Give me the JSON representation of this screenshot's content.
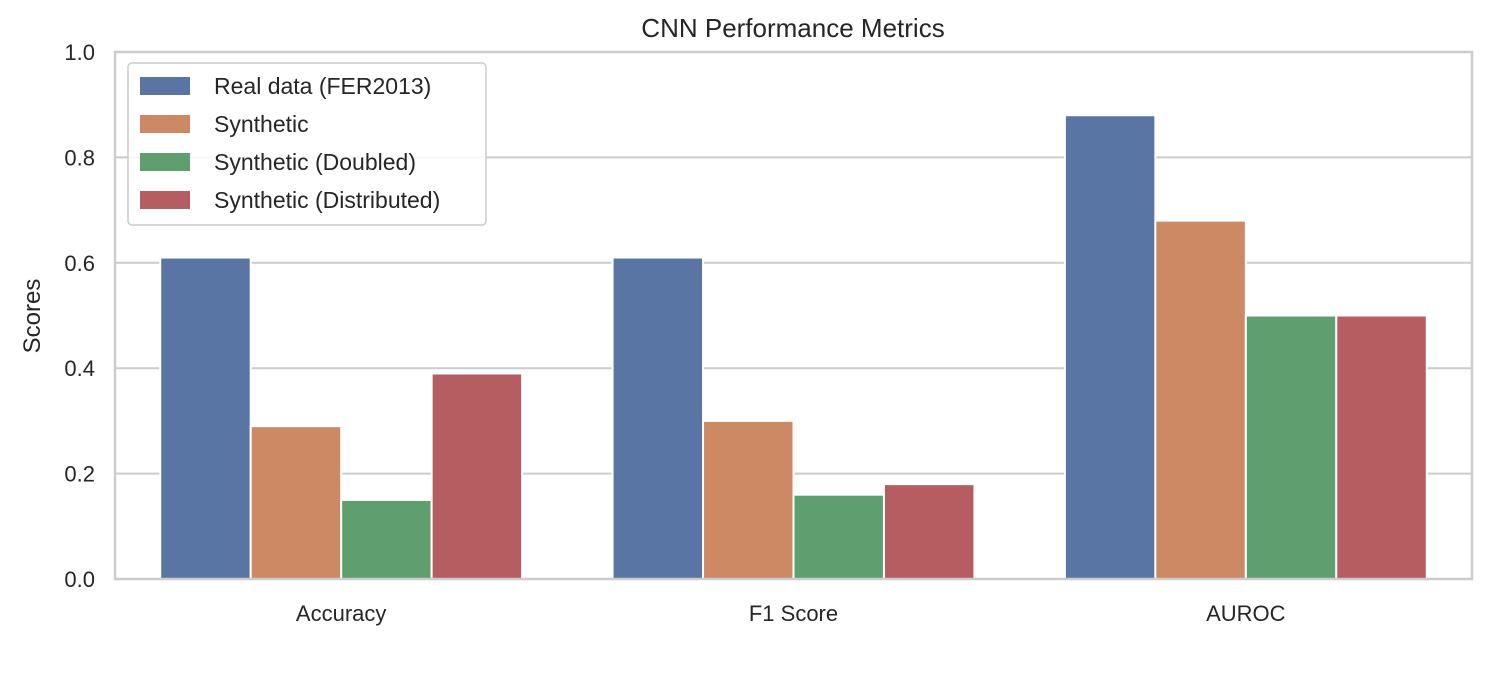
{
  "chart_data": {
    "type": "bar",
    "title": "CNN Performance Metrics",
    "xlabel": "",
    "ylabel": "Scores",
    "ylim": [
      0,
      1.0
    ],
    "yticks": [
      "0.0",
      "0.2",
      "0.4",
      "0.6",
      "0.8",
      "1.0"
    ],
    "grid": true,
    "legend_position": "top-left",
    "categories": [
      "Accuracy",
      "F1 Score",
      "AUROC"
    ],
    "series": [
      {
        "name": "Real data (FER2013)",
        "color": "#5975a4",
        "values": [
          0.61,
          0.61,
          0.88
        ]
      },
      {
        "name": "Synthetic",
        "color": "#cc8963",
        "values": [
          0.29,
          0.3,
          0.68
        ]
      },
      {
        "name": "Synthetic (Doubled)",
        "color": "#5f9e6e",
        "values": [
          0.15,
          0.16,
          0.5
        ]
      },
      {
        "name": "Synthetic (Distributed)",
        "color": "#b55d60",
        "values": [
          0.39,
          0.18,
          0.5
        ]
      }
    ]
  }
}
